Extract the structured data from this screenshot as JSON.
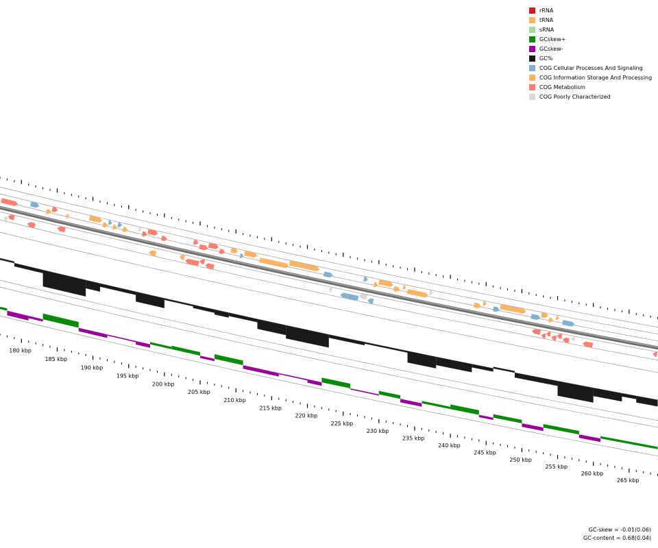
{
  "legend": [
    {
      "label": "rRNA",
      "color": "#cc1f1f"
    },
    {
      "label": "tRNA",
      "color": "#fdb462"
    },
    {
      "label": "sRNA",
      "color": "#a6d99a"
    },
    {
      "label": "GCskew+",
      "color": "#0a8a0a"
    },
    {
      "label": "GCskew-",
      "color": "#990099"
    },
    {
      "label": "GC%",
      "color": "#1a1a1a"
    },
    {
      "label": "COG Cellular Processes And Signaling",
      "color": "#80b1d3"
    },
    {
      "label": "COG Information Storage And Processing",
      "color": "#fdb462"
    },
    {
      "label": "COG Metabolism",
      "color": "#fb8072"
    },
    {
      "label": "COG Poorly Characterized",
      "color": "#d9d9d9"
    }
  ],
  "axis": {
    "unit": "kbp",
    "labels": [
      "180 kbp",
      "185 kbp",
      "190 kbp",
      "195 kbp",
      "200 kbp",
      "205 kbp",
      "210 kbp",
      "215 kbp",
      "220 kbp",
      "225 kbp",
      "230 kbp",
      "235 kbp",
      "240 kbp",
      "245 kbp",
      "250 kbp",
      "255 kbp",
      "260 kbp",
      "265 kbp"
    ]
  },
  "stats": {
    "gc_skew": "GC-skew = -0.01(0.06)",
    "gc_content": "GC-content = 0.68(0.04)"
  },
  "chart_data": {
    "type": "genome-map-segment",
    "range_kbp": [
      177,
      269
    ],
    "features_forward": [
      {
        "start": 177.2,
        "end": 179.5,
        "cog": "COG Metabolism"
      },
      {
        "start": 181.3,
        "end": 182.5,
        "cog": "COG Cellular Processes And Signaling"
      },
      {
        "start": 183.5,
        "end": 184.2,
        "cog": "COG Information Storage And Processing"
      },
      {
        "start": 184.3,
        "end": 185.1,
        "cog": "COG Metabolism"
      },
      {
        "start": 186.3,
        "end": 186.7,
        "cog": "COG Information Storage And Processing"
      },
      {
        "start": 189.5,
        "end": 191.3,
        "cog": "COG Information Storage And Processing"
      },
      {
        "start": 191.4,
        "end": 192.1,
        "cog": "COG Information Storage And Processing"
      },
      {
        "start": 192.2,
        "end": 192.7,
        "cog": "COG Cellular Processes And Signaling"
      },
      {
        "start": 192.8,
        "end": 193.4,
        "cog": "COG Information Storage And Processing"
      },
      {
        "start": 193.5,
        "end": 194.1,
        "cog": "COG Cellular Processes And Signaling"
      },
      {
        "start": 194.2,
        "end": 194.9,
        "cog": "COG Information Storage And Processing"
      },
      {
        "start": 196.4,
        "end": 196.8,
        "cog": "COG Poorly Characterized"
      },
      {
        "start": 196.9,
        "end": 197.6,
        "cog": "COG Metabolism"
      },
      {
        "start": 197.7,
        "end": 199.1,
        "cog": "COG Metabolism"
      },
      {
        "start": 199.6,
        "end": 200.4,
        "cog": "COG Metabolism"
      },
      {
        "start": 204.1,
        "end": 204.8,
        "cog": "COG Metabolism"
      },
      {
        "start": 204.9,
        "end": 206.1,
        "cog": "COG Metabolism"
      },
      {
        "start": 206.2,
        "end": 207.6,
        "cog": "COG Metabolism"
      },
      {
        "start": 207.7,
        "end": 208.5,
        "cog": "COG Metabolism"
      },
      {
        "start": 209.3,
        "end": 210.3,
        "cog": "COG Information Storage And Processing"
      },
      {
        "start": 210.6,
        "end": 211.1,
        "cog": "COG Cellular Processes And Signaling"
      },
      {
        "start": 211.2,
        "end": 213.0,
        "cog": "COG Information Storage And Processing"
      },
      {
        "start": 213.3,
        "end": 217.4,
        "cog": "COG Information Storage And Processing"
      },
      {
        "start": 217.5,
        "end": 221.7,
        "cog": "COG Information Storage And Processing"
      },
      {
        "start": 222.3,
        "end": 223.6,
        "cog": "COG Cellular Processes And Signaling"
      },
      {
        "start": 227.9,
        "end": 228.5,
        "cog": "COG Cellular Processes And Signaling"
      },
      {
        "start": 229.3,
        "end": 229.9,
        "cog": "COG Information Storage And Processing"
      },
      {
        "start": 230.0,
        "end": 232.0,
        "cog": "COG Information Storage And Processing"
      },
      {
        "start": 232.1,
        "end": 233.0,
        "cog": "COG Information Storage And Processing"
      },
      {
        "start": 233.4,
        "end": 233.8,
        "cog": "COG Information Storage And Processing"
      },
      {
        "start": 234.0,
        "end": 236.9,
        "cog": "COG Information Storage And Processing"
      },
      {
        "start": 237.1,
        "end": 237.6,
        "cog": "COG Poorly Characterized"
      },
      {
        "start": 243.3,
        "end": 244.3,
        "cog": "COG Information Storage And Processing"
      },
      {
        "start": 244.6,
        "end": 245.1,
        "cog": "COG Information Storage And Processing"
      },
      {
        "start": 246.0,
        "end": 246.9,
        "cog": "COG Cellular Processes And Signaling"
      },
      {
        "start": 247.0,
        "end": 250.6,
        "cog": "COG Information Storage And Processing"
      },
      {
        "start": 251.3,
        "end": 252.6,
        "cog": "COG Cellular Processes And Signaling"
      },
      {
        "start": 252.7,
        "end": 253.7,
        "cog": "COG Information Storage And Processing"
      },
      {
        "start": 253.8,
        "end": 254.4,
        "cog": "COG Information Storage And Processing"
      },
      {
        "start": 254.8,
        "end": 255.2,
        "cog": "COG Information Storage And Processing"
      },
      {
        "start": 255.7,
        "end": 257.4,
        "cog": "COG Cellular Processes And Signaling"
      }
    ],
    "features_reverse": [
      {
        "start": 177.5,
        "end": 178.0,
        "cog": "COG Poorly Characterized"
      },
      {
        "start": 178.1,
        "end": 179.0,
        "cog": "COG Metabolism"
      },
      {
        "start": 180.8,
        "end": 181.9,
        "cog": "COG Metabolism"
      },
      {
        "start": 185.0,
        "end": 186.1,
        "cog": "COG Metabolism"
      },
      {
        "start": 197.8,
        "end": 198.8,
        "cog": "COG Information Storage And Processing"
      },
      {
        "start": 202.1,
        "end": 202.8,
        "cog": "COG Information Storage And Processing"
      },
      {
        "start": 202.9,
        "end": 204.8,
        "cog": "COG Metabolism"
      },
      {
        "start": 204.9,
        "end": 205.6,
        "cog": "COG Metabolism"
      },
      {
        "start": 205.7,
        "end": 206.9,
        "cog": "COG Metabolism"
      },
      {
        "start": 223.0,
        "end": 223.4,
        "cog": "COG Poorly Characterized"
      },
      {
        "start": 224.6,
        "end": 227.1,
        "cog": "COG Cellular Processes And Signaling"
      },
      {
        "start": 227.2,
        "end": 228.3,
        "cog": "COG Poorly Characterized"
      },
      {
        "start": 228.4,
        "end": 229.2,
        "cog": "COG Cellular Processes And Signaling"
      },
      {
        "start": 251.4,
        "end": 252.6,
        "cog": "COG Metabolism"
      },
      {
        "start": 252.7,
        "end": 253.3,
        "cog": "COG Metabolism"
      },
      {
        "start": 253.4,
        "end": 254.0,
        "cog": "COG Metabolism"
      },
      {
        "start": 254.1,
        "end": 254.8,
        "cog": "COG Metabolism"
      },
      {
        "start": 254.9,
        "end": 255.6,
        "cog": "COG Metabolism"
      },
      {
        "start": 255.7,
        "end": 256.6,
        "cog": "COG Metabolism"
      },
      {
        "start": 256.9,
        "end": 257.4,
        "cog": "COG Poorly Characterized"
      },
      {
        "start": 258.5,
        "end": 259.9,
        "cog": "COG Metabolism"
      },
      {
        "start": 268.3,
        "end": 268.9,
        "cog": "COG Metabolism"
      }
    ],
    "gc_content_deviation": [
      {
        "start": 177,
        "end": 179,
        "value": 0.01
      },
      {
        "start": 179,
        "end": 183,
        "value": -0.02
      },
      {
        "start": 183,
        "end": 189,
        "value": -0.1
      },
      {
        "start": 189,
        "end": 191,
        "value": -0.05
      },
      {
        "start": 191,
        "end": 196,
        "value": -0.02
      },
      {
        "start": 196,
        "end": 200,
        "value": -0.06
      },
      {
        "start": 200,
        "end": 204,
        "value": -0.01
      },
      {
        "start": 204,
        "end": 207,
        "value": -0.02
      },
      {
        "start": 207,
        "end": 209,
        "value": -0.03
      },
      {
        "start": 209,
        "end": 213,
        "value": -0.02
      },
      {
        "start": 213,
        "end": 217,
        "value": -0.06
      },
      {
        "start": 217,
        "end": 223,
        "value": -0.08
      },
      {
        "start": 223,
        "end": 228,
        "value": -0.02
      },
      {
        "start": 228,
        "end": 234,
        "value": -0.01
      },
      {
        "start": 234,
        "end": 238,
        "value": -0.07
      },
      {
        "start": 238,
        "end": 243,
        "value": -0.05
      },
      {
        "start": 243,
        "end": 246,
        "value": -0.02
      },
      {
        "start": 246,
        "end": 249,
        "value": 0.01
      },
      {
        "start": 249,
        "end": 255,
        "value": -0.03
      },
      {
        "start": 255,
        "end": 260,
        "value": -0.09
      },
      {
        "start": 260,
        "end": 264,
        "value": -0.05
      },
      {
        "start": 264,
        "end": 266,
        "value": -0.02
      },
      {
        "start": 266,
        "end": 269,
        "value": -0.04
      }
    ],
    "gc_skew": [
      {
        "start": 177,
        "end": 178,
        "value": 0.02
      },
      {
        "start": 178,
        "end": 181,
        "value": -0.04
      },
      {
        "start": 181,
        "end": 183,
        "value": -0.02
      },
      {
        "start": 183,
        "end": 188,
        "value": 0.05
      },
      {
        "start": 188,
        "end": 192,
        "value": -0.03
      },
      {
        "start": 192,
        "end": 196,
        "value": -0.01
      },
      {
        "start": 196,
        "end": 198,
        "value": -0.03
      },
      {
        "start": 198,
        "end": 201,
        "value": 0.02
      },
      {
        "start": 201,
        "end": 205,
        "value": 0.03
      },
      {
        "start": 205,
        "end": 207,
        "value": -0.02
      },
      {
        "start": 207,
        "end": 211,
        "value": 0.04
      },
      {
        "start": 211,
        "end": 216,
        "value": -0.03
      },
      {
        "start": 216,
        "end": 220,
        "value": -0.01
      },
      {
        "start": 220,
        "end": 222,
        "value": -0.03
      },
      {
        "start": 222,
        "end": 226,
        "value": 0.04
      },
      {
        "start": 226,
        "end": 230,
        "value": -0.01
      },
      {
        "start": 230,
        "end": 233,
        "value": 0.03
      },
      {
        "start": 233,
        "end": 236,
        "value": -0.03
      },
      {
        "start": 236,
        "end": 240,
        "value": 0.02
      },
      {
        "start": 240,
        "end": 244,
        "value": 0.04
      },
      {
        "start": 244,
        "end": 246,
        "value": -0.02
      },
      {
        "start": 246,
        "end": 250,
        "value": 0.03
      },
      {
        "start": 250,
        "end": 253,
        "value": -0.03
      },
      {
        "start": 253,
        "end": 258,
        "value": 0.03
      },
      {
        "start": 258,
        "end": 261,
        "value": -0.03
      },
      {
        "start": 261,
        "end": 269,
        "value": 0.02
      }
    ]
  }
}
